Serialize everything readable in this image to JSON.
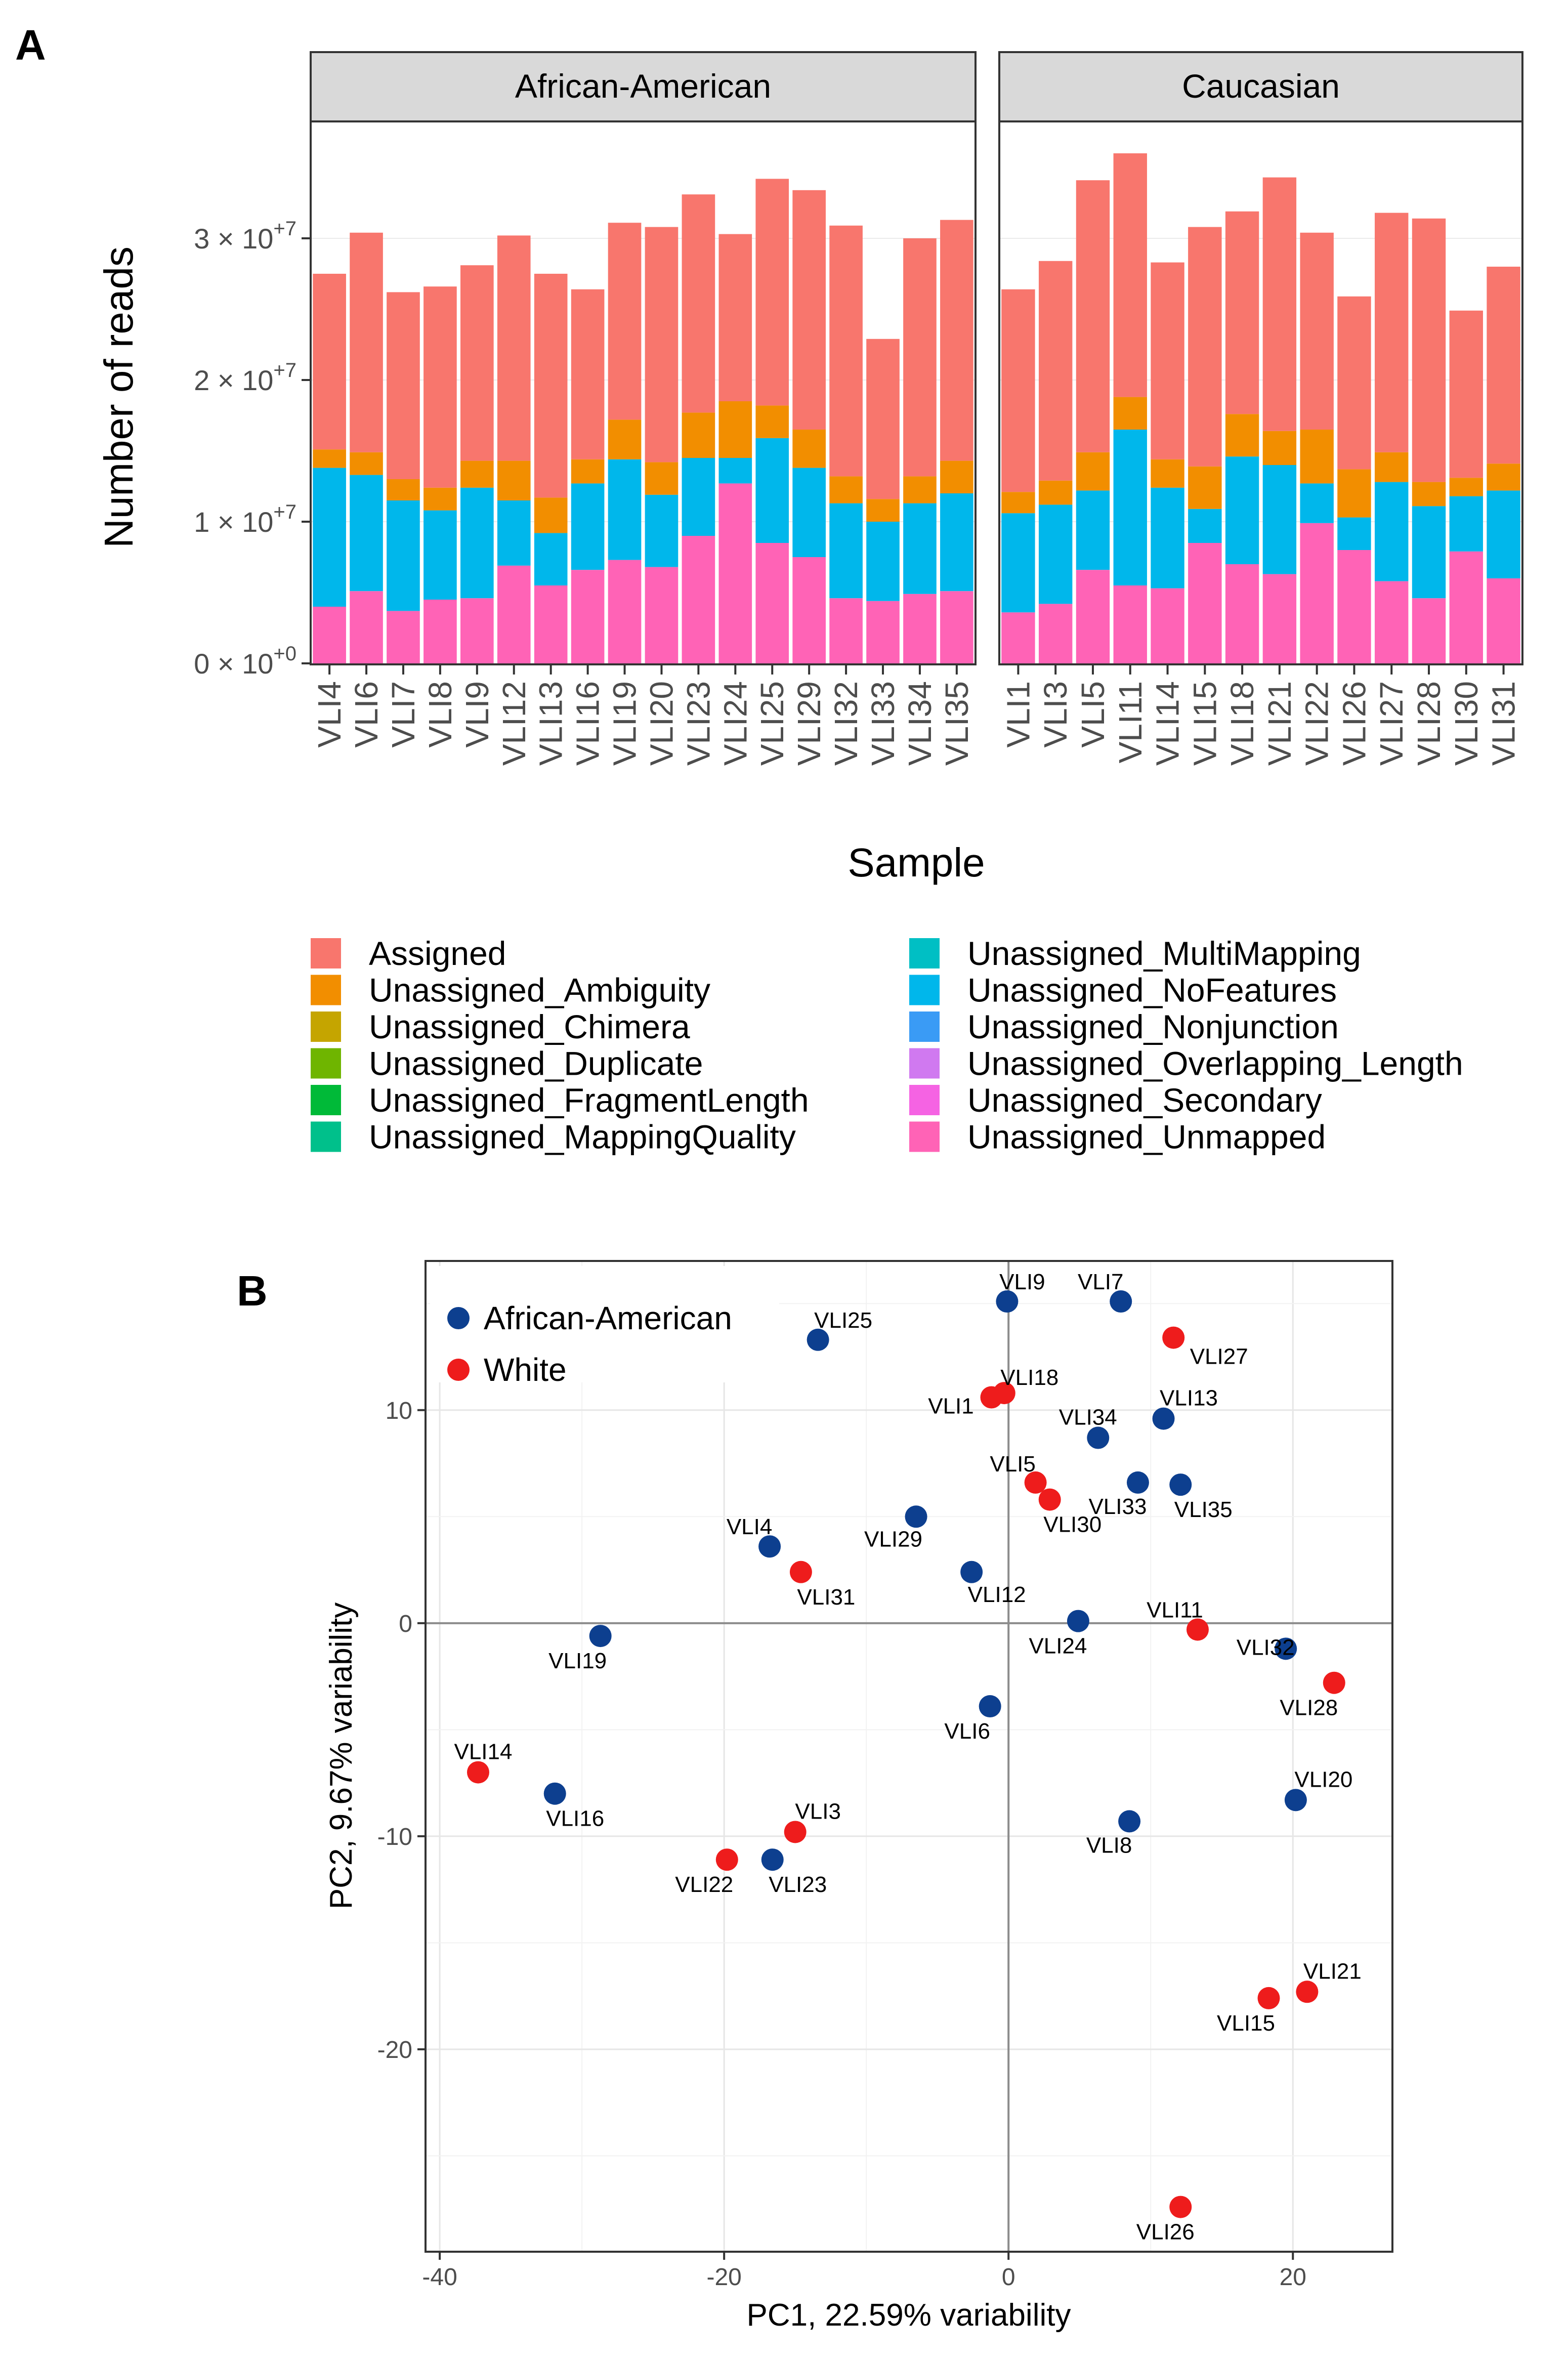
{
  "panel_a": {
    "letter": "A",
    "facets": [
      "African-American",
      "Caucasian"
    ],
    "ylabel": "Number of reads",
    "xlabel": "Sample",
    "y_ticks": [
      {
        "value": 0,
        "mantissa": "0",
        "exponent": "+0"
      },
      {
        "value": 10000000,
        "mantissa": "1",
        "exponent": "+7"
      },
      {
        "value": 20000000,
        "mantissa": "2",
        "exponent": "+7"
      },
      {
        "value": 30000000,
        "mantissa": "3",
        "exponent": "+7"
      }
    ],
    "legend": [
      {
        "label": "Assigned",
        "color": "#F8766D"
      },
      {
        "label": "Unassigned_Ambiguity",
        "color": "#F28E00"
      },
      {
        "label": "Unassigned_Chimera",
        "color": "#C5A500"
      },
      {
        "label": "Unassigned_Duplicate",
        "color": "#6FB500"
      },
      {
        "label": "Unassigned_FragmentLength",
        "color": "#00BA38"
      },
      {
        "label": "Unassigned_MappingQuality",
        "color": "#00C08B"
      },
      {
        "label": "Unassigned_MultiMapping",
        "color": "#00BFC4"
      },
      {
        "label": "Unassigned_NoFeatures",
        "color": "#00B7EB"
      },
      {
        "label": "Unassigned_Nonjunction",
        "color": "#3A9BF5"
      },
      {
        "label": "Unassigned_Overlapping_Length",
        "color": "#D079F0"
      },
      {
        "label": "Unassigned_Secondary",
        "color": "#F563E3"
      },
      {
        "label": "Unassigned_Unmapped",
        "color": "#FF63B6"
      }
    ]
  },
  "panel_b": {
    "letter": "B",
    "legend": [
      {
        "label": "African-American",
        "color": "#0D3F8F"
      },
      {
        "label": "White",
        "color": "#EE1C1C"
      }
    ]
  },
  "chart_data": [
    {
      "type": "bar",
      "stacked": true,
      "title": "",
      "xlabel": "Sample",
      "ylabel": "Number of reads",
      "ylim": [
        0,
        37000000
      ],
      "facets": [
        {
          "name": "African-American",
          "categories": [
            "VLI4",
            "VLI6",
            "VLI7",
            "VLI8",
            "VLI9",
            "VLI12",
            "VLI13",
            "VLI16",
            "VLI19",
            "VLI20",
            "VLI23",
            "VLI24",
            "VLI25",
            "VLI29",
            "VLI32",
            "VLI33",
            "VLI34",
            "VLI35"
          ],
          "series": [
            {
              "name": "Unassigned_Unmapped",
              "values": [
                4000000,
                5100000,
                3700000,
                4500000,
                4600000,
                6900000,
                5500000,
                6600000,
                7300000,
                6800000,
                9000000,
                12700000,
                8500000,
                7500000,
                4600000,
                4400000,
                4900000,
                5100000
              ]
            },
            {
              "name": "Unassigned_NoFeatures",
              "values": [
                9800000,
                8200000,
                7800000,
                6300000,
                7800000,
                4600000,
                3700000,
                6100000,
                7100000,
                5100000,
                5500000,
                1800000,
                7400000,
                6300000,
                6700000,
                5600000,
                6400000,
                6900000
              ]
            },
            {
              "name": "Unassigned_Ambiguity",
              "values": [
                1300000,
                1600000,
                1500000,
                1600000,
                1900000,
                2800000,
                2500000,
                1700000,
                2800000,
                2300000,
                3200000,
                4000000,
                2300000,
                2700000,
                1900000,
                1600000,
                1900000,
                2300000
              ]
            },
            {
              "name": "Assigned",
              "values": [
                12400000,
                15500000,
                13200000,
                14200000,
                13800000,
                15900000,
                15800000,
                12000000,
                13900000,
                16600000,
                15400000,
                11800000,
                16000000,
                16900000,
                17700000,
                11300000,
                16800000,
                17000000
              ]
            }
          ]
        },
        {
          "name": "Caucasian",
          "categories": [
            "VLI1",
            "VLI3",
            "VLI5",
            "VLI11",
            "VLI14",
            "VLI15",
            "VLI18",
            "VLI21",
            "VLI22",
            "VLI26",
            "VLI27",
            "VLI28",
            "VLI30",
            "VLI31"
          ],
          "series": [
            {
              "name": "Unassigned_Unmapped",
              "values": [
                3600000,
                4200000,
                6600000,
                5500000,
                5300000,
                8500000,
                7000000,
                6300000,
                9900000,
                8000000,
                5800000,
                4600000,
                7900000,
                6000000
              ]
            },
            {
              "name": "Unassigned_NoFeatures",
              "values": [
                7000000,
                7000000,
                5600000,
                11000000,
                7100000,
                2400000,
                7600000,
                7700000,
                2800000,
                2300000,
                7000000,
                6500000,
                3900000,
                6200000
              ]
            },
            {
              "name": "Unassigned_Ambiguity",
              "values": [
                1500000,
                1700000,
                2700000,
                2300000,
                2000000,
                3000000,
                3000000,
                2400000,
                3800000,
                3400000,
                2100000,
                1700000,
                1300000,
                1900000
              ]
            },
            {
              "name": "Assigned",
              "values": [
                14300000,
                15500000,
                19200000,
                17200000,
                13900000,
                16900000,
                14300000,
                17900000,
                13900000,
                12200000,
                16900000,
                18600000,
                11800000,
                13900000
              ]
            }
          ]
        }
      ]
    },
    {
      "type": "scatter",
      "title": "",
      "xlabel": "PC1, 22.59% variability",
      "ylabel": "PC2, 9.67% variability",
      "xlim": [
        -41,
        27
      ],
      "ylim": [
        -29.5,
        17
      ],
      "x_ticks": [
        -40,
        -20,
        0,
        20
      ],
      "y_ticks": [
        -20,
        -10,
        0,
        10
      ],
      "grid": true,
      "legend_position": "top-left",
      "series": [
        {
          "name": "African-American",
          "points": [
            {
              "label": "VLI9",
              "x": -0.1,
              "y": 15.1
            },
            {
              "label": "VLI7",
              "x": 7.9,
              "y": 15.1
            },
            {
              "label": "VLI25",
              "x": -13.4,
              "y": 13.3
            },
            {
              "label": "VLI13",
              "x": 10.9,
              "y": 9.6
            },
            {
              "label": "VLI34",
              "x": 6.3,
              "y": 8.7
            },
            {
              "label": "VLI33",
              "x": 9.1,
              "y": 6.6
            },
            {
              "label": "VLI35",
              "x": 12.1,
              "y": 6.5
            },
            {
              "label": "VLI29",
              "x": -6.5,
              "y": 5.0
            },
            {
              "label": "VLI4",
              "x": -16.8,
              "y": 3.6
            },
            {
              "label": "VLI12",
              "x": -2.6,
              "y": 2.4
            },
            {
              "label": "VLI24",
              "x": 4.9,
              "y": 0.1
            },
            {
              "label": "VLI19",
              "x": -28.7,
              "y": -0.6
            },
            {
              "label": "VLI32",
              "x": 19.5,
              "y": -1.2
            },
            {
              "label": "VLI6",
              "x": -1.3,
              "y": -3.9
            },
            {
              "label": "VLI16",
              "x": -31.9,
              "y": -8.0
            },
            {
              "label": "VLI20",
              "x": 20.2,
              "y": -8.3
            },
            {
              "label": "VLI8",
              "x": 8.5,
              "y": -9.3
            },
            {
              "label": "VLI23",
              "x": -16.6,
              "y": -11.1
            }
          ]
        },
        {
          "name": "White",
          "points": [
            {
              "label": "VLI27",
              "x": 11.6,
              "y": 13.4
            },
            {
              "label": "VLI18",
              "x": -0.3,
              "y": 10.8
            },
            {
              "label": "VLI1",
              "x": -1.2,
              "y": 10.6
            },
            {
              "label": "VLI5",
              "x": 1.9,
              "y": 6.6
            },
            {
              "label": "VLI30",
              "x": 2.9,
              "y": 5.8
            },
            {
              "label": "VLI31",
              "x": -14.6,
              "y": 2.4
            },
            {
              "label": "VLI11",
              "x": 13.3,
              "y": -0.3
            },
            {
              "label": "VLI28",
              "x": 22.9,
              "y": -2.8
            },
            {
              "label": "VLI14",
              "x": -37.3,
              "y": -7.0
            },
            {
              "label": "VLI3",
              "x": -15.0,
              "y": -9.8
            },
            {
              "label": "VLI22",
              "x": -19.8,
              "y": -11.1
            },
            {
              "label": "VLI15",
              "x": 18.3,
              "y": -17.6
            },
            {
              "label": "VLI21",
              "x": 21.0,
              "y": -17.3
            },
            {
              "label": "VLI26",
              "x": 12.1,
              "y": -27.4
            }
          ]
        }
      ]
    }
  ]
}
